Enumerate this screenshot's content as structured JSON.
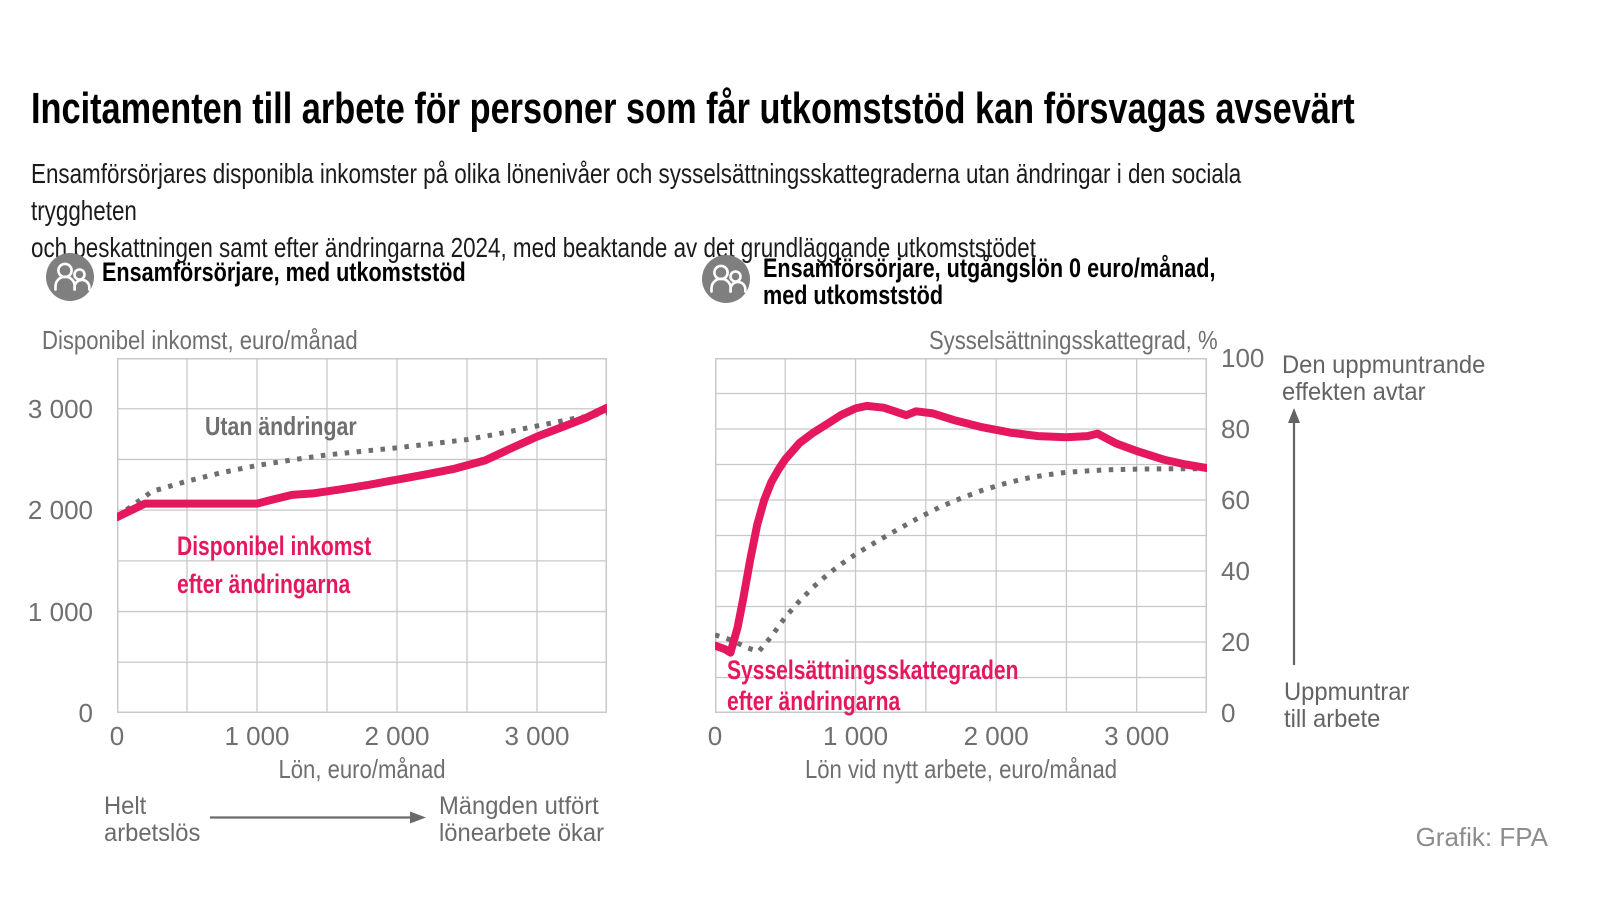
{
  "page": {
    "title": "Incitamenten till arbete för personer som får utkomststöd kan försvagas avsevärt",
    "subtitle": "Ensamförsörjares disponibla inkomster på olika lönenivåer och sysselsättningsskattegraderna utan ändringar i den sociala tryggheten\noch beskattningen samt efter ändringarna 2024, med beaktande av det grundläggande utkomststödet",
    "credit": "Grafik: FPA"
  },
  "colors": {
    "pink": "#e5175e",
    "gray_line": "#6e6e6e",
    "grid": "#c8c8c8",
    "tick_text": "#6f6f6f",
    "icon_bg": "#7f7f7f"
  },
  "charts": {
    "left": {
      "icon": "family-persons-icon",
      "title": "Ensamförsörjare, med utkomststöd",
      "axis_unit": "Disponibel inkomst, euro/månad",
      "x_axis_title": "Lön, euro/månad",
      "label_gray": "Utan ändringar",
      "label_pink": "Disponibel inkomst\nefter ändringarna",
      "footnote_left": "Helt\narbetslös",
      "footnote_right": "Mängden utfört\nlönearbete ökar"
    },
    "right": {
      "icon": "family-persons-icon",
      "title": "Ensamförsörjare, utgångslön 0 euro/månad,\nmed utkomststöd",
      "axis_unit": "Sysselsättningsskattegrad, %",
      "x_axis_title": "Lön vid nytt arbete, euro/månad",
      "label_pink": "Sysselsättningsskattegraden\nefter ändringarna",
      "annotation_top": "Den uppmuntrande\neffekten avtar",
      "annotation_bottom": "Uppmuntrar\ntill arbete"
    }
  },
  "chart_data": [
    {
      "type": "line",
      "title": "Ensamförsörjare, med utkomststöd",
      "xlabel": "Lön, euro/månad",
      "ylabel": "Disponibel inkomst, euro/månad",
      "xlim": [
        0,
        3500
      ],
      "ylim": [
        0,
        3500
      ],
      "x_grid_step": 500,
      "y_grid_step": 500,
      "grid": true,
      "x_ticks": [
        {
          "v": 0,
          "label": "0"
        },
        {
          "v": 1000,
          "label": "1 000"
        },
        {
          "v": 2000,
          "label": "2 000"
        },
        {
          "v": 3000,
          "label": "3 000"
        }
      ],
      "y_ticks": [
        {
          "v": 0,
          "label": "0"
        },
        {
          "v": 1000,
          "label": "1 000"
        },
        {
          "v": 2000,
          "label": "2 000"
        },
        {
          "v": 3000,
          "label": "3 000"
        }
      ],
      "series": [
        {
          "name": "Utan ändringar",
          "color": "gray_line",
          "style": "dotted",
          "points": [
            [
              0,
              1935
            ],
            [
              250,
              2185
            ],
            [
              500,
              2285
            ],
            [
              750,
              2370
            ],
            [
              1000,
              2440
            ],
            [
              1250,
              2495
            ],
            [
              1500,
              2545
            ],
            [
              1750,
              2580
            ],
            [
              2000,
              2615
            ],
            [
              2250,
              2655
            ],
            [
              2500,
              2695
            ],
            [
              2750,
              2760
            ],
            [
              3000,
              2830
            ],
            [
              3250,
              2900
            ],
            [
              3500,
              2960
            ]
          ]
        },
        {
          "name": "Disponibel inkomst efter ändringarna",
          "color": "pink",
          "style": "solid",
          "points": [
            [
              0,
              1930
            ],
            [
              200,
              2065
            ],
            [
              500,
              2065
            ],
            [
              1000,
              2065
            ],
            [
              1100,
              2100
            ],
            [
              1250,
              2150
            ],
            [
              1400,
              2165
            ],
            [
              1600,
              2205
            ],
            [
              1800,
              2250
            ],
            [
              2000,
              2300
            ],
            [
              2200,
              2350
            ],
            [
              2400,
              2405
            ],
            [
              2630,
              2490
            ],
            [
              2800,
              2600
            ],
            [
              3000,
              2725
            ],
            [
              3200,
              2830
            ],
            [
              3350,
              2910
            ],
            [
              3500,
              3010
            ]
          ]
        }
      ]
    },
    {
      "type": "line",
      "title": "Ensamförsörjare, utgångslön 0 euro/månad, med utkomststöd",
      "xlabel": "Lön vid nytt arbete, euro/månad",
      "ylabel": "Sysselsättningsskattegrad, %",
      "xlim": [
        0,
        3500
      ],
      "ylim": [
        0,
        100
      ],
      "x_grid_step": 500,
      "y_grid_step": 10,
      "grid": true,
      "x_ticks": [
        {
          "v": 0,
          "label": "0"
        },
        {
          "v": 1000,
          "label": "1 000"
        },
        {
          "v": 2000,
          "label": "2 000"
        },
        {
          "v": 3000,
          "label": "3 000"
        }
      ],
      "y_ticks": [
        {
          "v": 0,
          "label": "0"
        },
        {
          "v": 20,
          "label": "20"
        },
        {
          "v": 40,
          "label": "40"
        },
        {
          "v": 60,
          "label": "60"
        },
        {
          "v": 80,
          "label": "80"
        },
        {
          "v": 100,
          "label": "100"
        }
      ],
      "series": [
        {
          "name": "Utan ändringar",
          "color": "gray_line",
          "style": "dotted",
          "points": [
            [
              0,
              22
            ],
            [
              120,
              20.5
            ],
            [
              220,
              18.5
            ],
            [
              310,
              17.3
            ],
            [
              400,
              21.5
            ],
            [
              500,
              27
            ],
            [
              600,
              31.5
            ],
            [
              700,
              35.5
            ],
            [
              800,
              39
            ],
            [
              900,
              42
            ],
            [
              1000,
              44.7
            ],
            [
              1150,
              48.3
            ],
            [
              1300,
              51.7
            ],
            [
              1450,
              55
            ],
            [
              1600,
              58
            ],
            [
              1750,
              60.5
            ],
            [
              1900,
              62.7
            ],
            [
              2050,
              64.5
            ],
            [
              2200,
              66
            ],
            [
              2350,
              67
            ],
            [
              2500,
              67.8
            ],
            [
              2650,
              68.2
            ],
            [
              2800,
              68.5
            ],
            [
              3000,
              68.7
            ],
            [
              3200,
              68.8
            ],
            [
              3500,
              68.8
            ]
          ]
        },
        {
          "name": "Sysselsättningsskattegraden efter ändringarna",
          "color": "pink",
          "style": "solid",
          "points": [
            [
              0,
              19
            ],
            [
              70,
              18
            ],
            [
              110,
              17
            ],
            [
              160,
              24
            ],
            [
              200,
              32
            ],
            [
              250,
              43
            ],
            [
              300,
              53
            ],
            [
              350,
              60
            ],
            [
              400,
              65
            ],
            [
              450,
              68.5
            ],
            [
              500,
              71.5
            ],
            [
              600,
              76
            ],
            [
              700,
              79
            ],
            [
              800,
              81.5
            ],
            [
              900,
              84
            ],
            [
              1000,
              85.8
            ],
            [
              1080,
              86.5
            ],
            [
              1200,
              86
            ],
            [
              1300,
              84.7
            ],
            [
              1360,
              83.9
            ],
            [
              1430,
              85
            ],
            [
              1550,
              84.4
            ],
            [
              1700,
              82.5
            ],
            [
              1900,
              80.5
            ],
            [
              2100,
              79
            ],
            [
              2300,
              78
            ],
            [
              2500,
              77.7
            ],
            [
              2650,
              78
            ],
            [
              2720,
              78.7
            ],
            [
              2850,
              76
            ],
            [
              3000,
              73.8
            ],
            [
              3200,
              71.3
            ],
            [
              3350,
              70
            ],
            [
              3500,
              69
            ]
          ]
        }
      ]
    }
  ]
}
